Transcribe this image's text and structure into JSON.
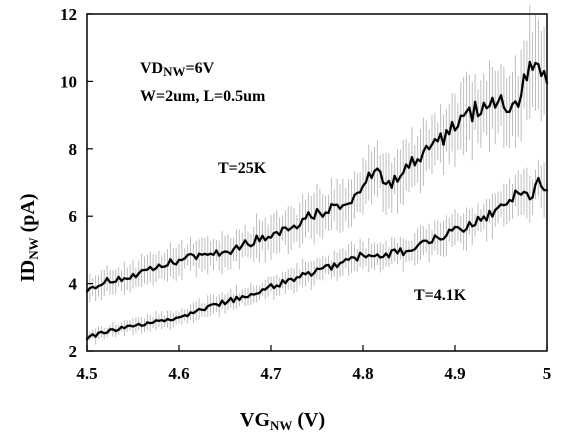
{
  "chart_data": {
    "type": "line",
    "title": "",
    "xlabel": {
      "main": "VG",
      "sub": "NW",
      "unit": " (V)"
    },
    "ylabel": {
      "main": "ID",
      "sub": "NW",
      "unit": " (pA)"
    },
    "xlim": [
      4.5,
      5.0
    ],
    "ylim": [
      2,
      12
    ],
    "x_ticks": [
      "4.5",
      "4.6",
      "4.7",
      "4.8",
      "4.9",
      "5"
    ],
    "y_ticks": [
      "2",
      "4",
      "6",
      "8",
      "10",
      "12"
    ],
    "grid": false,
    "legend": "none",
    "annotations": {
      "vd": {
        "main": "VD",
        "sub": "NW",
        "rest": "=6V"
      },
      "geometry": "W=2um, L=0.5um",
      "t25": "T=25K",
      "t41": "T=4.1K"
    },
    "series": [
      {
        "label": "T=25K",
        "color": "#000000",
        "errorbar_color": "#bdbdbd",
        "x": [
          4.5,
          4.525,
          4.55,
          4.575,
          4.6,
          4.625,
          4.65,
          4.675,
          4.7,
          4.725,
          4.75,
          4.775,
          4.8,
          4.815,
          4.825,
          4.85,
          4.875,
          4.9,
          4.925,
          4.95,
          4.965,
          4.975,
          4.985,
          4.99,
          5.0
        ],
        "y": [
          3.85,
          4.1,
          4.2,
          4.45,
          4.7,
          4.85,
          4.95,
          5.2,
          5.45,
          5.75,
          6.1,
          6.3,
          6.75,
          7.6,
          6.9,
          7.5,
          8.0,
          8.7,
          9.2,
          9.5,
          9.1,
          10.1,
          10.75,
          10.3,
          9.9
        ],
        "err": [
          0.35,
          0.4,
          0.45,
          0.45,
          0.5,
          0.5,
          0.55,
          0.55,
          0.6,
          0.6,
          0.65,
          0.7,
          0.75,
          0.8,
          0.8,
          0.9,
          0.9,
          1.0,
          1.1,
          1.2,
          1.3,
          1.4,
          1.5,
          1.5,
          1.4
        ]
      },
      {
        "label": "T=4.1K",
        "color": "#000000",
        "errorbar_color": "#bdbdbd",
        "x": [
          4.5,
          4.525,
          4.55,
          4.575,
          4.6,
          4.625,
          4.65,
          4.675,
          4.7,
          4.725,
          4.75,
          4.775,
          4.8,
          4.825,
          4.85,
          4.875,
          4.9,
          4.925,
          4.95,
          4.97,
          4.98,
          4.99,
          5.0
        ],
        "y": [
          2.4,
          2.6,
          2.75,
          2.85,
          3.0,
          3.25,
          3.45,
          3.65,
          3.9,
          4.15,
          4.35,
          4.6,
          4.85,
          4.85,
          5.0,
          5.35,
          5.55,
          5.85,
          6.25,
          6.75,
          6.5,
          7.0,
          6.9
        ],
        "err": [
          0.2,
          0.2,
          0.22,
          0.25,
          0.25,
          0.28,
          0.3,
          0.3,
          0.35,
          0.35,
          0.38,
          0.4,
          0.42,
          0.45,
          0.48,
          0.5,
          0.52,
          0.55,
          0.6,
          0.65,
          0.7,
          0.7,
          0.7
        ]
      }
    ]
  }
}
